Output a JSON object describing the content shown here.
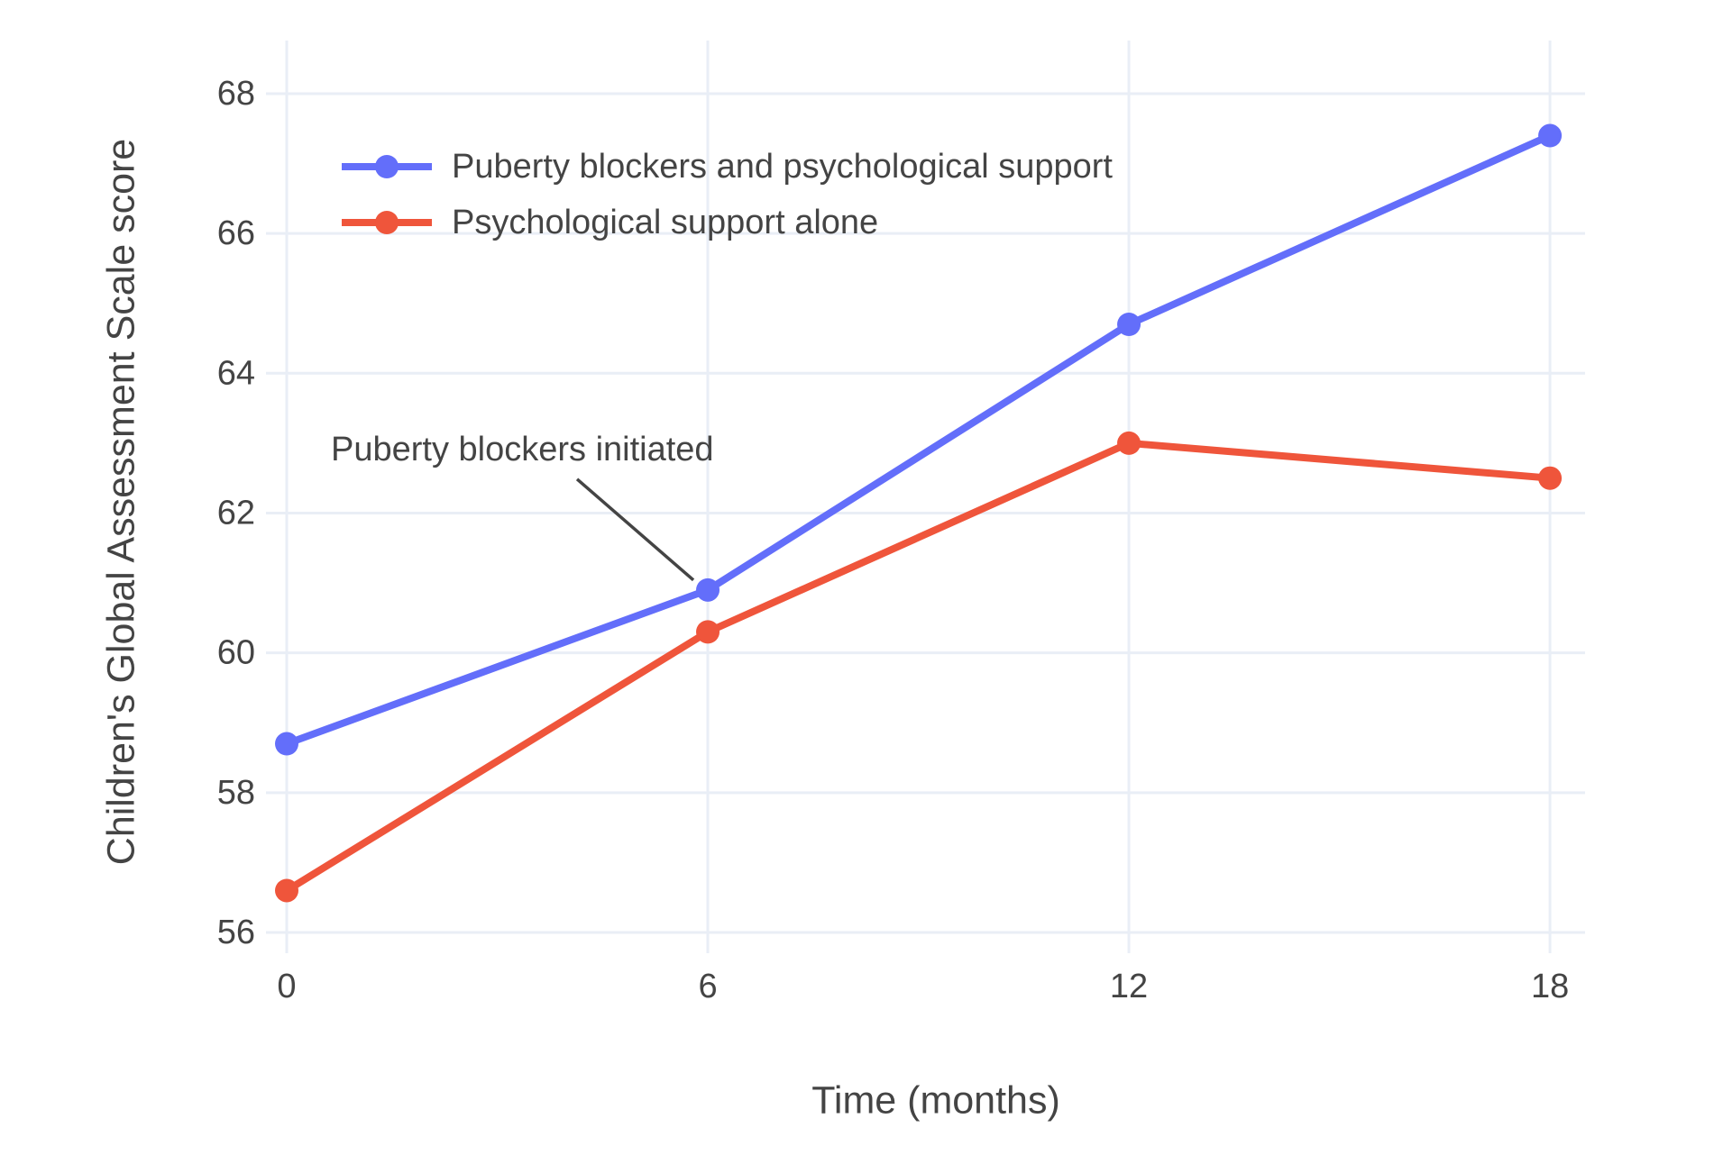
{
  "chart_data": {
    "type": "line",
    "x": [
      0,
      6,
      12,
      18
    ],
    "series": [
      {
        "name": "Puberty blockers and psychological support",
        "color": "#636EFA",
        "values": [
          58.7,
          60.9,
          64.7,
          67.4
        ]
      },
      {
        "name": "Psychological support alone",
        "color": "#EF553B",
        "values": [
          56.6,
          60.3,
          63.0,
          62.5
        ]
      }
    ],
    "xlabel": "Time (months)",
    "ylabel": "Children's Global Assessment Scale score",
    "x_ticks": [
      0,
      6,
      12,
      18
    ],
    "y_ticks": [
      56,
      58,
      60,
      62,
      64,
      66,
      68
    ],
    "xlim": [
      0,
      18.5
    ],
    "ylim": [
      56,
      68.76
    ],
    "grid": true,
    "legend_position": "inside-top-left",
    "annotation": {
      "text": "Puberty blockers initiated",
      "target_x": 6,
      "target_y": 60.9
    },
    "colors": {
      "grid": "#E9EEF6",
      "text": "#444444",
      "annotation_line": "#444444",
      "background": "#FFFFFF"
    }
  }
}
